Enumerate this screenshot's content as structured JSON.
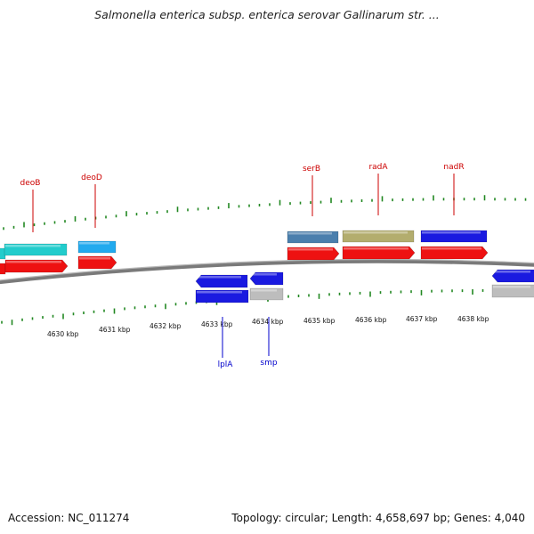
{
  "title": "Salmonella enterica subsp. enterica serovar Gallinarum str. ...",
  "footer": {
    "accession": "Accession: NC_011274",
    "summary": "Topology: circular; Length: 4,658,697 bp; Genes: 4,040"
  },
  "axis": {
    "labels": [
      "4630 kbp",
      "4631 kbp",
      "4632 kbp",
      "4633 kbp",
      "4634 kbp",
      "4635 kbp",
      "4636 kbp",
      "4637 kbp",
      "4638 kbp"
    ]
  },
  "genes_forward": [
    {
      "name": "deoB",
      "label_color": "#cc0000"
    },
    {
      "name": "deoD",
      "label_color": "#cc0000"
    },
    {
      "name": "serB",
      "label_color": "#cc0000"
    },
    {
      "name": "radA",
      "label_color": "#cc0000"
    },
    {
      "name": "nadR",
      "label_color": "#cc0000"
    }
  ],
  "genes_reverse": [
    {
      "name": "lplA",
      "label_color": "#0000cc"
    },
    {
      "name": "smp",
      "label_color": "#0000cc"
    }
  ],
  "colors": {
    "cds": "#ee1111",
    "tick": "#228822",
    "backbone": "#888888",
    "cyan": "#22cccc",
    "light_blue": "#22aaee",
    "steel_blue": "#4a7fad",
    "olive": "#b3ad6e",
    "blue": "#1a1ae0",
    "grey": "#bdbdbd"
  }
}
